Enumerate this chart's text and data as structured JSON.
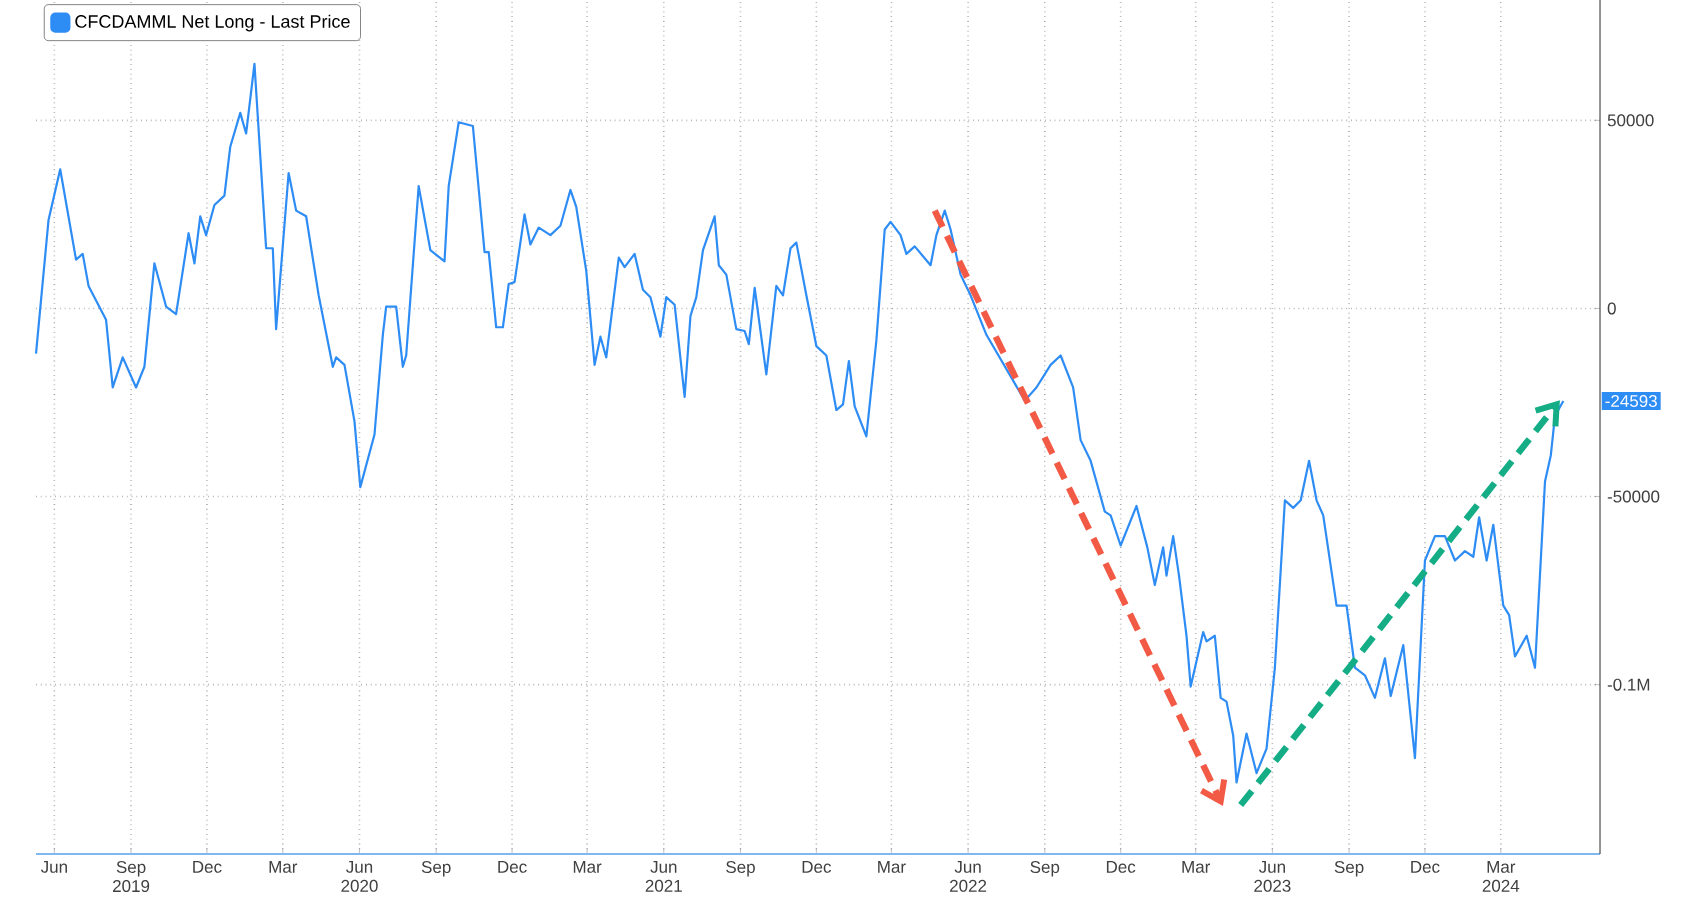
{
  "chart_data": {
    "type": "line",
    "x": [
      "2019-05-10",
      "2019-05-25",
      "2019-06-08",
      "2019-06-27",
      "2019-07-05",
      "2019-07-12",
      "2019-08-02",
      "2019-08-10",
      "2019-08-22",
      "2019-09-07",
      "2019-09-17",
      "2019-09-29",
      "2019-10-13",
      "2019-10-25",
      "2019-11-09",
      "2019-11-16",
      "2019-11-23",
      "2019-11-30",
      "2019-12-10",
      "2019-12-22",
      "2019-12-29",
      "2020-01-10",
      "2020-01-17",
      "2020-01-27",
      "2020-02-10",
      "2020-02-18",
      "2020-02-22",
      "2020-03-08",
      "2020-03-17",
      "2020-03-29",
      "2020-04-13",
      "2020-04-30",
      "2020-05-04",
      "2020-05-14",
      "2020-05-26",
      "2020-06-02",
      "2020-06-19",
      "2020-06-29",
      "2020-07-03",
      "2020-07-15",
      "2020-07-23",
      "2020-07-27",
      "2020-08-11",
      "2020-08-25",
      "2020-09-11",
      "2020-09-16",
      "2020-09-28",
      "2020-10-15",
      "2020-10-29",
      "2020-11-03",
      "2020-11-12",
      "2020-11-20",
      "2020-11-27",
      "2020-12-04",
      "2020-12-16",
      "2020-12-23",
      "2021-01-02",
      "2021-01-16",
      "2021-01-28",
      "2021-02-09",
      "2021-02-16",
      "2021-02-28",
      "2021-03-10",
      "2021-03-17",
      "2021-03-24",
      "2021-04-08",
      "2021-04-15",
      "2021-04-27",
      "2021-05-07",
      "2021-05-16",
      "2021-05-28",
      "2021-06-04",
      "2021-06-14",
      "2021-06-26",
      "2021-07-03",
      "2021-07-10",
      "2021-07-18",
      "2021-08-01",
      "2021-08-06",
      "2021-08-15",
      "2021-08-27",
      "2021-09-06",
      "2021-09-11",
      "2021-09-18",
      "2021-10-02",
      "2021-10-14",
      "2021-10-22",
      "2021-10-31",
      "2021-11-07",
      "2021-11-19",
      "2021-12-01",
      "2021-12-13",
      "2021-12-25",
      "2022-01-02",
      "2022-01-09",
      "2022-01-16",
      "2022-01-30",
      "2022-02-11",
      "2022-02-21",
      "2022-02-28",
      "2022-03-12",
      "2022-03-19",
      "2022-03-29",
      "2022-04-17",
      "2022-04-24",
      "2022-05-04",
      "2022-05-11",
      "2022-05-23",
      "2022-06-04",
      "2022-06-23",
      "2022-08-08",
      "2022-08-22",
      "2022-09-08",
      "2022-09-20",
      "2022-10-05",
      "2022-10-14",
      "2022-10-26",
      "2022-11-12",
      "2022-11-19",
      "2022-12-01",
      "2022-12-20",
      "2023-01-02",
      "2023-01-11",
      "2023-01-21",
      "2023-01-25",
      "2023-02-02",
      "2023-02-09",
      "2023-02-18",
      "2023-02-23",
      "2023-03-10",
      "2023-03-14",
      "2023-03-24",
      "2023-03-31",
      "2023-04-07",
      "2023-04-15",
      "2023-04-19",
      "2023-05-01",
      "2023-05-13",
      "2023-05-25",
      "2023-06-04",
      "2023-06-16",
      "2023-06-26",
      "2023-07-05",
      "2023-07-15",
      "2023-07-24",
      "2023-08-01",
      "2023-08-17",
      "2023-08-29",
      "2023-09-08",
      "2023-09-20",
      "2023-10-02",
      "2023-10-14",
      "2023-10-21",
      "2023-11-05",
      "2023-11-19",
      "2023-12-01",
      "2023-12-13",
      "2023-12-25",
      "2024-01-06",
      "2024-01-18",
      "2024-01-28",
      "2024-02-04",
      "2024-02-13",
      "2024-02-21",
      "2024-03-04",
      "2024-03-11",
      "2024-03-18",
      "2024-04-01",
      "2024-04-11",
      "2024-04-23",
      "2024-04-30",
      "2024-05-05",
      "2024-05-15"
    ],
    "series": [
      {
        "name": "CFCDAMML Net Long - Last Price",
        "color": "#2e8cf5",
        "values": [
          -12000,
          23500,
          37000,
          13000,
          14500,
          6000,
          -3000,
          -21000,
          -13000,
          -21000,
          -15500,
          12000,
          500,
          -1500,
          20000,
          12000,
          24500,
          19500,
          27500,
          30000,
          43000,
          52000,
          46500,
          65000,
          16000,
          16000,
          -5500,
          36000,
          26000,
          24500,
          3500,
          -15500,
          -13000,
          -15000,
          -30000,
          -47500,
          -33500,
          -7000,
          500,
          500,
          -15500,
          -12500,
          32500,
          15500,
          12500,
          32500,
          49500,
          48500,
          15000,
          15000,
          -5000,
          -5000,
          6500,
          7000,
          25000,
          17000,
          21500,
          19500,
          22000,
          31500,
          27000,
          10000,
          -15000,
          -7500,
          -13000,
          13500,
          11000,
          14500,
          5000,
          3000,
          -7500,
          3000,
          1000,
          -23500,
          -2000,
          3000,
          15500,
          24500,
          11500,
          9000,
          -5500,
          -6000,
          -9500,
          5500,
          -17500,
          6000,
          3500,
          16000,
          17500,
          3500,
          -10000,
          -12500,
          -27000,
          -25500,
          -14000,
          -26000,
          -34000,
          -8500,
          21000,
          23000,
          19500,
          14500,
          16500,
          11500,
          19500,
          26000,
          21000,
          9000,
          3500,
          -7000,
          -24500,
          -21000,
          -15000,
          -12500,
          -21000,
          -35000,
          -40500,
          -54000,
          -55000,
          -63000,
          -52500,
          -63500,
          -73500,
          -63500,
          -71000,
          -60500,
          -71000,
          -87000,
          -100500,
          -86000,
          -88500,
          -87000,
          -103500,
          -104500,
          -113500,
          -126000,
          -113000,
          -123500,
          -117000,
          -95500,
          -51000,
          -53000,
          -51000,
          -40500,
          -51000,
          -55000,
          -79000,
          -79000,
          -95500,
          -97500,
          -103500,
          -93000,
          -103000,
          -89500,
          -119500,
          -67000,
          -60500,
          -60500,
          -67000,
          -64500,
          -66000,
          -55500,
          -67000,
          -57500,
          -79000,
          -81500,
          -92500,
          -87000,
          -95500,
          -46000,
          -39000,
          -28500,
          -24593
        ]
      },
      {
        "type": "line",
        "color": "#f25a45",
        "line_style": "dashed",
        "x": [
          "2022-04-22",
          "2023-03-31"
        ],
        "values": [
          26000,
          -131000
        ]
      },
      {
        "type": "line",
        "color": "#14ad85",
        "line_style": "dashed",
        "x": [
          "2023-04-24",
          "2024-05-07"
        ],
        "values": [
          -132000,
          -25500
        ]
      }
    ],
    "annotations": [
      {
        "text": "-24593",
        "x": "2024-05-15",
        "y": -24593
      }
    ],
    "xlim": [
      "2019-05-10",
      "2024-06-28"
    ],
    "xticks": [
      {
        "value": "2019-06-01",
        "label": "Jun"
      },
      {
        "value": "2019-09-01",
        "label": "Sep 2019"
      },
      {
        "value": "2019-12-01",
        "label": "Dec"
      },
      {
        "value": "2020-03-01",
        "label": "Mar"
      },
      {
        "value": "2020-06-01",
        "label": "Jun 2020"
      },
      {
        "value": "2020-09-01",
        "label": "Sep"
      },
      {
        "value": "2020-12-01",
        "label": "Dec"
      },
      {
        "value": "2021-03-01",
        "label": "Mar"
      },
      {
        "value": "2021-06-01",
        "label": "Jun 2021"
      },
      {
        "value": "2021-09-01",
        "label": "Sep"
      },
      {
        "value": "2021-12-01",
        "label": "Dec"
      },
      {
        "value": "2022-03-01",
        "label": "Mar"
      },
      {
        "value": "2022-06-01",
        "label": "Jun 2022"
      },
      {
        "value": "2022-09-01",
        "label": "Sep"
      },
      {
        "value": "2022-12-01",
        "label": "Dec"
      },
      {
        "value": "2023-03-01",
        "label": "Mar"
      },
      {
        "value": "2023-06-01",
        "label": "Jun 2023"
      },
      {
        "value": "2023-09-01",
        "label": "Sep"
      },
      {
        "value": "2023-12-01",
        "label": "Dec"
      },
      {
        "value": "2024-03-01",
        "label": "Mar 2024"
      }
    ],
    "ylim": [
      -145000,
      82000
    ],
    "yticks": [
      50000,
      0,
      -50000,
      {
        "value": -100000,
        "label": "-0.1M"
      }
    ],
    "grid": true,
    "legend": "top left"
  }
}
